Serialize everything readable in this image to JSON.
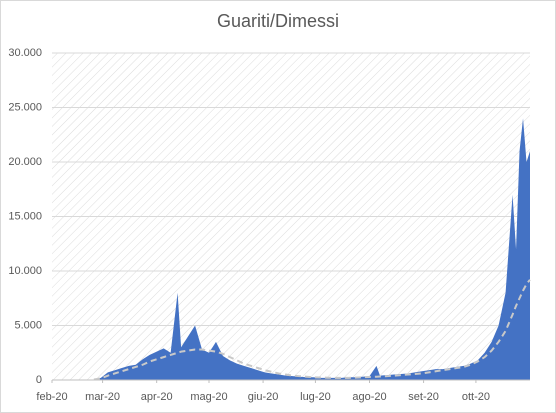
{
  "chart_data": {
    "type": "area",
    "title": "Guariti/Dimessi",
    "x": [
      24,
      28,
      32,
      36,
      40,
      44,
      48,
      52,
      56,
      60,
      64,
      68,
      72,
      74,
      78,
      82,
      86,
      90,
      94,
      98,
      102,
      106,
      110,
      114,
      118,
      122,
      126,
      130,
      134,
      138,
      142,
      146,
      150,
      154,
      158,
      162,
      166,
      170,
      174,
      178,
      182,
      186,
      188,
      192,
      196,
      200,
      204,
      208,
      212,
      216,
      220,
      224,
      228,
      232,
      236,
      240,
      244,
      248,
      252,
      256,
      260,
      264,
      266,
      268,
      270,
      272,
      274
    ],
    "series": [
      {
        "kind": "area",
        "color": "#4472c4",
        "values": [
          50,
          200,
          700,
          900,
          1100,
          1300,
          1400,
          1900,
          2300,
          2600,
          2900,
          2500,
          8000,
          3000,
          4000,
          5000,
          2800,
          2500,
          3500,
          2200,
          1800,
          1500,
          1300,
          1100,
          900,
          700,
          600,
          500,
          400,
          350,
          300,
          250,
          250,
          200,
          200,
          200,
          200,
          250,
          250,
          300,
          350,
          1300,
          400,
          450,
          500,
          550,
          600,
          700,
          800,
          900,
          1000,
          1000,
          1100,
          1200,
          1300,
          1500,
          1800,
          2500,
          3500,
          5000,
          8000,
          17000,
          12000,
          21000,
          24000,
          20000,
          21000
        ]
      },
      {
        "kind": "dashed-line",
        "color": "#c9c9c9",
        "values": [
          50,
          150,
          400,
          600,
          800,
          1000,
          1200,
          1400,
          1700,
          1900,
          2100,
          2300,
          2500,
          2600,
          2700,
          2800,
          2800,
          2700,
          2600,
          2400,
          2100,
          1800,
          1500,
          1300,
          1100,
          900,
          750,
          600,
          500,
          400,
          350,
          300,
          250,
          230,
          210,
          200,
          200,
          200,
          220,
          250,
          280,
          300,
          320,
          350,
          400,
          450,
          500,
          550,
          600,
          700,
          800,
          900,
          1000,
          1100,
          1200,
          1400,
          1700,
          2100,
          2700,
          3500,
          4500,
          6000,
          6800,
          7500,
          8200,
          8800,
          9200
        ]
      }
    ],
    "xlim": [
      0,
      274
    ],
    "xticks": [
      {
        "value": 0,
        "label": "feb-20"
      },
      {
        "value": 29,
        "label": "mar-20"
      },
      {
        "value": 60,
        "label": "apr-20"
      },
      {
        "value": 90,
        "label": "mag-20"
      },
      {
        "value": 121,
        "label": "giu-20"
      },
      {
        "value": 151,
        "label": "lug-20"
      },
      {
        "value": 182,
        "label": "ago-20"
      },
      {
        "value": 213,
        "label": "set-20"
      },
      {
        "value": 243,
        "label": "ott-20"
      }
    ],
    "ylim": [
      0,
      30000
    ],
    "yticks": [
      0,
      {
        "value": 5000,
        "label": "5.000"
      },
      {
        "value": 10000,
        "label": "10.000"
      },
      {
        "value": 15000,
        "label": "15.000"
      },
      {
        "value": 20000,
        "label": "20.000"
      },
      {
        "value": 25000,
        "label": "25.000"
      },
      {
        "value": 30000,
        "label": "30.000"
      }
    ],
    "grid": true
  }
}
